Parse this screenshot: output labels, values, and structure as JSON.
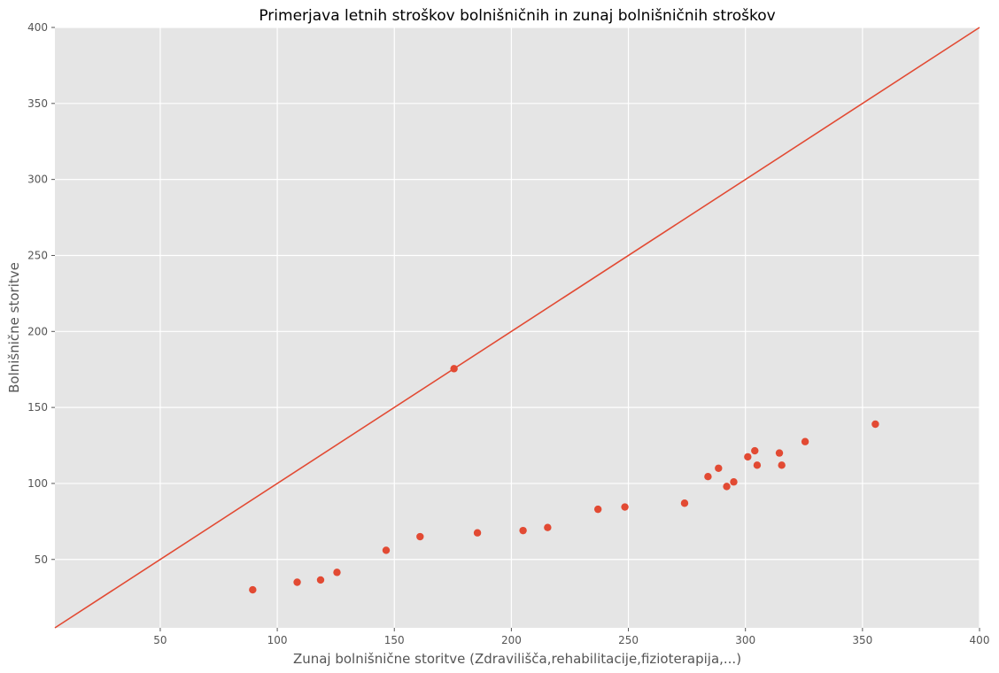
{
  "chart_data": {
    "type": "scatter",
    "title": "Primerjava letnih stroškov bolnišničnih in zunaj bolnišničnih stroškov",
    "xlabel": "Zunaj bolnišnične storitve (Zdravilišča,rehabilitacije,fizioterapija,...)",
    "ylabel": "Bolnišnične storitve",
    "xlim": [
      5,
      400
    ],
    "ylim": [
      5,
      400
    ],
    "x_ticks": [
      50,
      100,
      150,
      200,
      250,
      300,
      350,
      400
    ],
    "y_ticks": [
      50,
      100,
      150,
      200,
      250,
      300,
      350,
      400
    ],
    "grid": true,
    "reference_line": {
      "from": [
        5,
        5
      ],
      "to": [
        400,
        400
      ]
    },
    "points": [
      {
        "x": 89.5,
        "y": 30
      },
      {
        "x": 108.5,
        "y": 35
      },
      {
        "x": 118.5,
        "y": 36.5
      },
      {
        "x": 125.5,
        "y": 41.5
      },
      {
        "x": 146.5,
        "y": 56
      },
      {
        "x": 161,
        "y": 65
      },
      {
        "x": 175.5,
        "y": 175.5
      },
      {
        "x": 185.5,
        "y": 67.5
      },
      {
        "x": 205,
        "y": 69
      },
      {
        "x": 215.5,
        "y": 71
      },
      {
        "x": 237,
        "y": 83
      },
      {
        "x": 248.5,
        "y": 84.5
      },
      {
        "x": 274,
        "y": 87
      },
      {
        "x": 284,
        "y": 104.5
      },
      {
        "x": 288.5,
        "y": 110
      },
      {
        "x": 292,
        "y": 98
      },
      {
        "x": 295,
        "y": 101
      },
      {
        "x": 301,
        "y": 117.5
      },
      {
        "x": 304,
        "y": 121.5
      },
      {
        "x": 305,
        "y": 112
      },
      {
        "x": 314.5,
        "y": 120
      },
      {
        "x": 315.5,
        "y": 112
      },
      {
        "x": 325.5,
        "y": 127.5
      },
      {
        "x": 355.5,
        "y": 139
      }
    ],
    "colors": {
      "background": "#e5e5e5",
      "grid": "#ffffff",
      "marker": "#e24a33",
      "line": "#e24a33"
    }
  }
}
